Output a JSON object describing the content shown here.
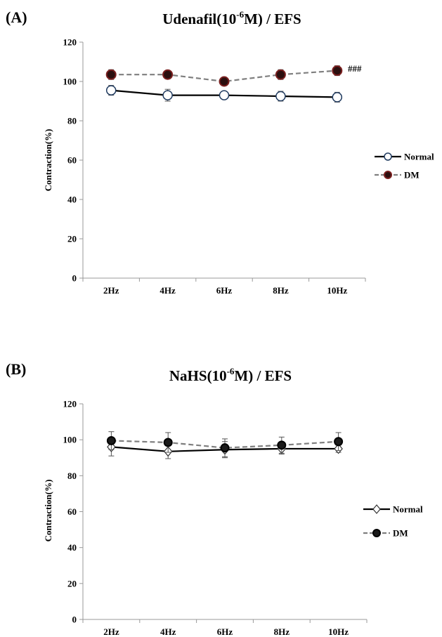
{
  "chart_data": [
    {
      "type": "line",
      "panel_label": "(A)",
      "title": {
        "main": "Udenafil(10",
        "sup": "-6",
        "rest": "M) / EFS"
      },
      "ylabel": "Contraction(%)",
      "xlabel": "",
      "categories": [
        "2Hz",
        "4Hz",
        "6Hz",
        "8Hz",
        "10Hz"
      ],
      "ylim": [
        0,
        120
      ],
      "yticks": [
        0,
        20,
        40,
        60,
        80,
        100,
        120
      ],
      "legend_position": "right",
      "annotation": "###",
      "series": [
        {
          "name": "Normal",
          "values": [
            95.5,
            93,
            93,
            92.5,
            92
          ],
          "errors": [
            2.5,
            3,
            2,
            2.5,
            2.5
          ],
          "line_color": "#000000",
          "line_style": "solid",
          "marker_fill": "#ffffff",
          "marker": "circle"
        },
        {
          "name": "DM",
          "values": [
            103.5,
            103.5,
            100,
            103.5,
            105.5
          ],
          "errors": [
            2.5,
            1.5,
            1,
            2.5,
            2.5
          ],
          "line_color": "#7f7f7f",
          "line_style": "dashed",
          "marker_fill": "#2b0f0f",
          "marker_edge": "#7a1f1f",
          "marker": "circle"
        }
      ]
    },
    {
      "type": "line",
      "panel_label": "(B)",
      "title": {
        "main": "NaHS(10",
        "sup": "-6",
        "rest": "M) / EFS"
      },
      "ylabel": "Contraction(%)",
      "xlabel": "",
      "categories": [
        "2Hz",
        "4Hz",
        "6Hz",
        "8Hz",
        "10Hz"
      ],
      "ylim": [
        0,
        120
      ],
      "yticks": [
        0,
        20,
        40,
        60,
        80,
        100,
        120
      ],
      "legend_position": "right",
      "annotation": "",
      "series": [
        {
          "name": "Normal",
          "values": [
            96,
            93.5,
            94.5,
            95,
            95
          ],
          "errors": [
            5,
            4,
            4.5,
            3,
            2
          ],
          "line_color": "#000000",
          "line_style": "solid",
          "marker_fill": "#ffffff",
          "marker": "diamond"
        },
        {
          "name": "DM",
          "values": [
            99.5,
            98.5,
            95.5,
            97,
            99
          ],
          "errors": [
            5,
            5.5,
            5,
            4.5,
            5
          ],
          "line_color": "#7f7f7f",
          "line_style": "dashed",
          "marker_fill": "#1a1a1a",
          "marker": "circle"
        }
      ]
    }
  ]
}
